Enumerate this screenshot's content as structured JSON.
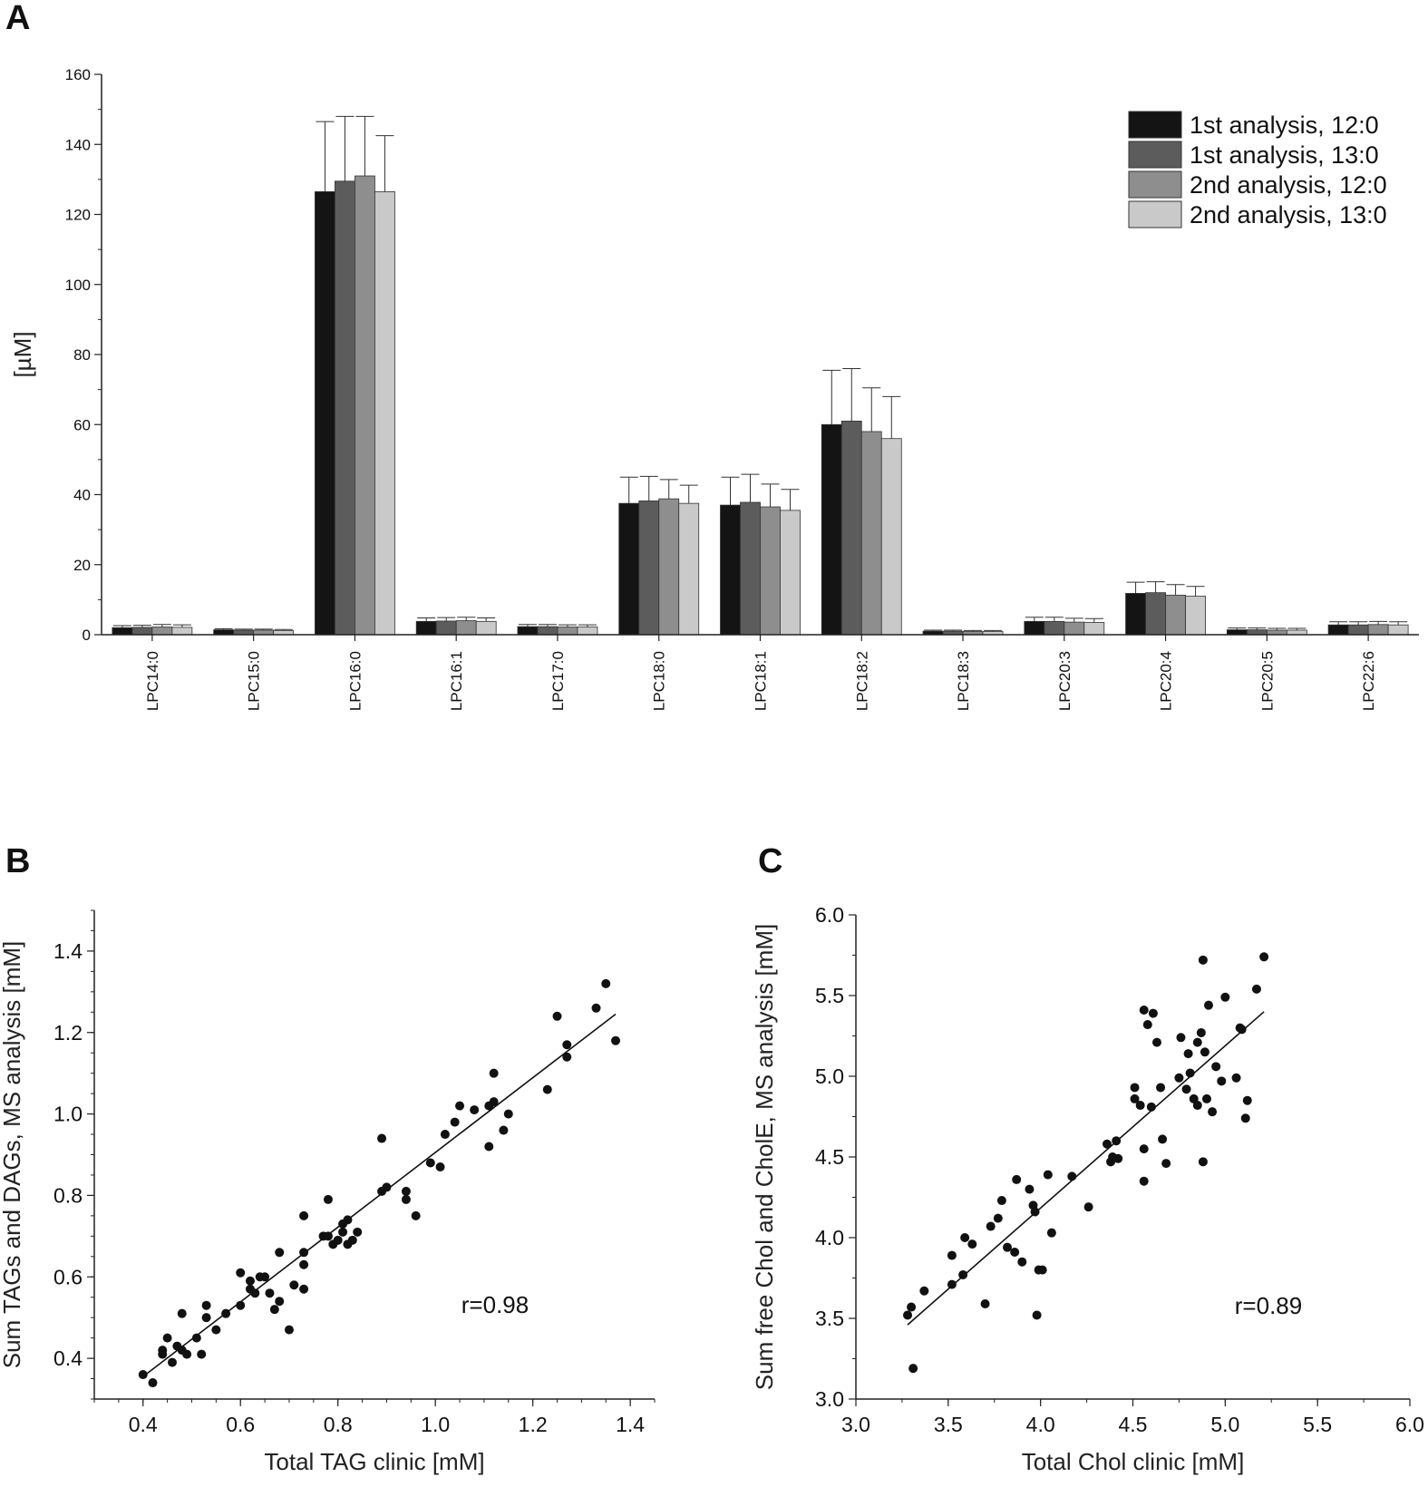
{
  "panels": {
    "a": "A",
    "b": "B",
    "c": "C"
  },
  "chart_data": [
    {
      "type": "bar",
      "panel": "A",
      "ylabel": "[µM]",
      "ylim": [
        0,
        160
      ],
      "yticks": [
        0,
        20,
        40,
        60,
        80,
        100,
        120,
        140,
        160
      ],
      "legend_position": "top-right",
      "categories": [
        "LPC14:0",
        "LPC15:0",
        "LPC16:0",
        "LPC16:1",
        "LPC17:0",
        "LPC18:0",
        "LPC18:1",
        "LPC18:2",
        "LPC18:3",
        "LPC20:3",
        "LPC20:4",
        "LPC20:5",
        "LPC22:6"
      ],
      "series": [
        {
          "name": "1st analysis, 12:0",
          "color": "#141414",
          "values": [
            2.0,
            1.4,
            126.5,
            3.8,
            2.3,
            37.5,
            37.0,
            60.0,
            1.0,
            3.8,
            11.8,
            1.4,
            2.8
          ],
          "errors": [
            0.6,
            0.3,
            20.0,
            1.0,
            0.6,
            7.5,
            8.0,
            15.5,
            0.3,
            1.2,
            3.2,
            0.5,
            0.9
          ]
        },
        {
          "name": "1st analysis, 13:0",
          "color": "#5c5c5c",
          "values": [
            2.1,
            1.3,
            129.5,
            3.9,
            2.3,
            38.2,
            37.8,
            61.0,
            1.0,
            3.8,
            12.0,
            1.4,
            2.8
          ],
          "errors": [
            0.6,
            0.3,
            18.5,
            1.0,
            0.6,
            7.0,
            8.0,
            15.0,
            0.3,
            1.2,
            3.1,
            0.5,
            0.9
          ]
        },
        {
          "name": "2nd analysis, 12:0",
          "color": "#8e8e8e",
          "values": [
            2.2,
            1.3,
            131.0,
            4.0,
            2.2,
            38.8,
            36.5,
            58.0,
            0.9,
            3.6,
            11.3,
            1.3,
            2.9
          ],
          "errors": [
            0.7,
            0.3,
            17.0,
            1.0,
            0.6,
            5.5,
            6.5,
            12.5,
            0.3,
            1.1,
            3.0,
            0.5,
            0.9
          ]
        },
        {
          "name": "2nd analysis, 13:0",
          "color": "#c9c9c9",
          "values": [
            2.1,
            1.2,
            126.5,
            3.8,
            2.2,
            37.5,
            35.5,
            56.0,
            0.9,
            3.5,
            11.0,
            1.3,
            2.8
          ],
          "errors": [
            0.7,
            0.3,
            16.0,
            1.0,
            0.6,
            5.2,
            6.0,
            12.0,
            0.3,
            1.1,
            2.8,
            0.5,
            0.9
          ]
        }
      ]
    },
    {
      "type": "scatter",
      "panel": "B",
      "xlabel": "Total TAG clinic [mM]",
      "ylabel": "Sum TAGs and DAGs, MS analysis [mM]",
      "xlim": [
        0.3,
        1.45
      ],
      "ylim": [
        0.3,
        1.5
      ],
      "xticks": [
        "0.4",
        "0.6",
        "0.8",
        "1.0",
        "1.2",
        "1.4"
      ],
      "yticks": [
        "0.4",
        "0.6",
        "0.8",
        "1.0",
        "1.2",
        "1.4"
      ],
      "annotation": "r=0.98",
      "regression": {
        "x": [
          0.4,
          1.37
        ],
        "y": [
          0.355,
          1.245
        ]
      },
      "points": [
        [
          0.4,
          0.36
        ],
        [
          0.42,
          0.34
        ],
        [
          0.44,
          0.41
        ],
        [
          0.44,
          0.42
        ],
        [
          0.45,
          0.45
        ],
        [
          0.46,
          0.39
        ],
        [
          0.47,
          0.43
        ],
        [
          0.48,
          0.42
        ],
        [
          0.48,
          0.51
        ],
        [
          0.49,
          0.41
        ],
        [
          0.51,
          0.45
        ],
        [
          0.52,
          0.41
        ],
        [
          0.53,
          0.5
        ],
        [
          0.53,
          0.53
        ],
        [
          0.55,
          0.47
        ],
        [
          0.57,
          0.51
        ],
        [
          0.6,
          0.53
        ],
        [
          0.6,
          0.61
        ],
        [
          0.62,
          0.59
        ],
        [
          0.62,
          0.57
        ],
        [
          0.63,
          0.56
        ],
        [
          0.64,
          0.6
        ],
        [
          0.65,
          0.6
        ],
        [
          0.66,
          0.56
        ],
        [
          0.67,
          0.52
        ],
        [
          0.68,
          0.54
        ],
        [
          0.68,
          0.66
        ],
        [
          0.7,
          0.47
        ],
        [
          0.71,
          0.58
        ],
        [
          0.73,
          0.57
        ],
        [
          0.73,
          0.63
        ],
        [
          0.73,
          0.66
        ],
        [
          0.73,
          0.75
        ],
        [
          0.77,
          0.7
        ],
        [
          0.78,
          0.7
        ],
        [
          0.78,
          0.79
        ],
        [
          0.79,
          0.68
        ],
        [
          0.8,
          0.69
        ],
        [
          0.81,
          0.71
        ],
        [
          0.81,
          0.73
        ],
        [
          0.82,
          0.68
        ],
        [
          0.82,
          0.74
        ],
        [
          0.83,
          0.69
        ],
        [
          0.84,
          0.71
        ],
        [
          0.89,
          0.81
        ],
        [
          0.89,
          0.94
        ],
        [
          0.9,
          0.82
        ],
        [
          0.94,
          0.79
        ],
        [
          0.94,
          0.81
        ],
        [
          0.96,
          0.75
        ],
        [
          0.99,
          0.88
        ],
        [
          1.01,
          0.87
        ],
        [
          1.02,
          0.95
        ],
        [
          1.04,
          0.98
        ],
        [
          1.05,
          1.02
        ],
        [
          1.08,
          1.01
        ],
        [
          1.11,
          1.02
        ],
        [
          1.11,
          0.92
        ],
        [
          1.12,
          1.03
        ],
        [
          1.12,
          1.1
        ],
        [
          1.14,
          0.96
        ],
        [
          1.15,
          1.0
        ],
        [
          1.23,
          1.06
        ],
        [
          1.25,
          1.24
        ],
        [
          1.27,
          1.14
        ],
        [
          1.27,
          1.17
        ],
        [
          1.33,
          1.26
        ],
        [
          1.35,
          1.32
        ],
        [
          1.37,
          1.18
        ]
      ]
    },
    {
      "type": "scatter",
      "panel": "C",
      "xlabel": "Total Chol clinic [mM]",
      "ylabel": "Sum free Chol and CholE, MS analysis [mM]",
      "xlim": [
        3.0,
        6.0
      ],
      "ylim": [
        3.0,
        6.0
      ],
      "xticks": [
        "3.0",
        "3.5",
        "4.0",
        "4.5",
        "5.0",
        "5.5",
        "6.0"
      ],
      "yticks": [
        "3.0",
        "3.5",
        "4.0",
        "4.5",
        "5.0",
        "5.5",
        "6.0"
      ],
      "annotation": "r=0.89",
      "regression": {
        "x": [
          3.28,
          5.21
        ],
        "y": [
          3.46,
          5.4
        ]
      },
      "points": [
        [
          3.28,
          3.52
        ],
        [
          3.3,
          3.57
        ],
        [
          3.31,
          3.19
        ],
        [
          3.37,
          3.67
        ],
        [
          3.52,
          3.71
        ],
        [
          3.52,
          3.89
        ],
        [
          3.58,
          3.77
        ],
        [
          3.59,
          4.0
        ],
        [
          3.63,
          3.96
        ],
        [
          3.7,
          3.59
        ],
        [
          3.73,
          4.07
        ],
        [
          3.77,
          4.12
        ],
        [
          3.79,
          4.23
        ],
        [
          3.82,
          3.94
        ],
        [
          3.86,
          3.91
        ],
        [
          3.87,
          4.36
        ],
        [
          3.9,
          3.85
        ],
        [
          3.94,
          4.3
        ],
        [
          3.96,
          4.2
        ],
        [
          3.97,
          4.16
        ],
        [
          3.98,
          3.52
        ],
        [
          3.99,
          3.8
        ],
        [
          4.01,
          3.8
        ],
        [
          4.04,
          4.39
        ],
        [
          4.06,
          4.03
        ],
        [
          4.17,
          4.38
        ],
        [
          4.26,
          4.19
        ],
        [
          4.36,
          4.58
        ],
        [
          4.38,
          4.47
        ],
        [
          4.39,
          4.5
        ],
        [
          4.41,
          4.6
        ],
        [
          4.42,
          4.49
        ],
        [
          4.51,
          4.86
        ],
        [
          4.51,
          4.93
        ],
        [
          4.54,
          4.82
        ],
        [
          4.56,
          4.35
        ],
        [
          4.56,
          4.55
        ],
        [
          4.56,
          5.41
        ],
        [
          4.58,
          5.32
        ],
        [
          4.6,
          4.81
        ],
        [
          4.61,
          5.39
        ],
        [
          4.63,
          5.21
        ],
        [
          4.65,
          4.93
        ],
        [
          4.66,
          4.61
        ],
        [
          4.68,
          4.46
        ],
        [
          4.75,
          4.99
        ],
        [
          4.76,
          5.24
        ],
        [
          4.79,
          4.92
        ],
        [
          4.8,
          5.14
        ],
        [
          4.81,
          5.02
        ],
        [
          4.83,
          4.86
        ],
        [
          4.85,
          5.21
        ],
        [
          4.85,
          4.82
        ],
        [
          4.87,
          5.27
        ],
        [
          4.88,
          4.47
        ],
        [
          4.88,
          5.72
        ],
        [
          4.89,
          5.15
        ],
        [
          4.9,
          4.86
        ],
        [
          4.91,
          5.44
        ],
        [
          4.93,
          4.78
        ],
        [
          4.95,
          5.06
        ],
        [
          4.98,
          4.97
        ],
        [
          5.0,
          5.49
        ],
        [
          5.06,
          4.99
        ],
        [
          5.08,
          5.3
        ],
        [
          5.09,
          5.29
        ],
        [
          5.11,
          4.74
        ],
        [
          5.12,
          4.85
        ],
        [
          5.17,
          5.54
        ],
        [
          5.21,
          5.74
        ]
      ]
    }
  ]
}
